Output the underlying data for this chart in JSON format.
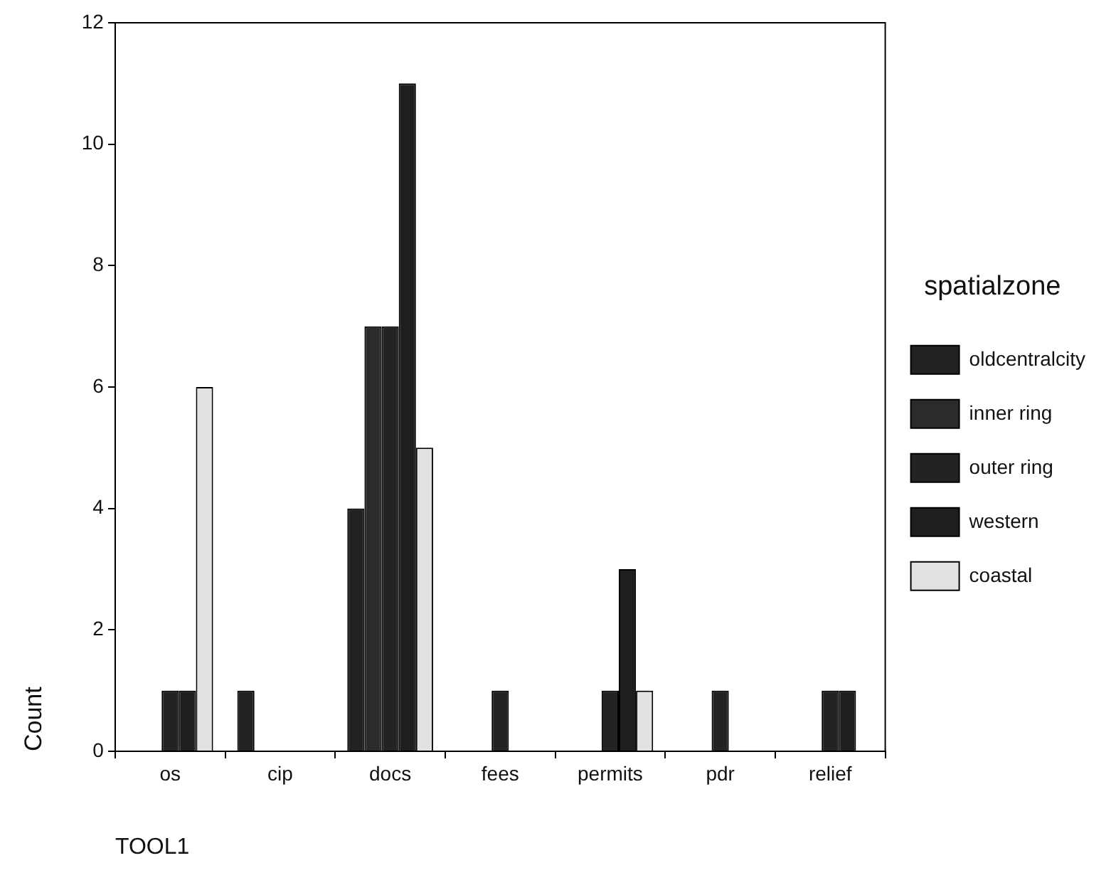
{
  "chart_data": {
    "type": "bar",
    "xlabel": "TOOL1",
    "ylabel": "Count",
    "legend_title": "spatialzone",
    "legend": "right",
    "grid": false,
    "categories": [
      "os",
      "cip",
      "docs",
      "fees",
      "permits",
      "pdr",
      "relief"
    ],
    "series": [
      {
        "name": "oldcentralcity",
        "color": "#222222",
        "values": [
          0,
          1,
          4,
          0,
          0,
          0,
          0
        ]
      },
      {
        "name": "inner ring",
        "color": "#2b2b2b",
        "values": [
          0,
          0,
          7,
          0,
          0,
          0,
          0
        ]
      },
      {
        "name": "outer ring",
        "color": "#232323",
        "values": [
          1,
          0,
          7,
          1,
          1,
          1,
          1
        ]
      },
      {
        "name": "western",
        "color": "#1e1e1e",
        "values": [
          1,
          0,
          11,
          0,
          3,
          0,
          1
        ]
      },
      {
        "name": "coastal",
        "color": "#e2e2e2",
        "values": [
          6,
          0,
          5,
          0,
          1,
          0,
          0
        ]
      }
    ],
    "ylim": [
      0,
      12
    ],
    "yticks": [
      0,
      2,
      4,
      6,
      8,
      10,
      12
    ]
  }
}
